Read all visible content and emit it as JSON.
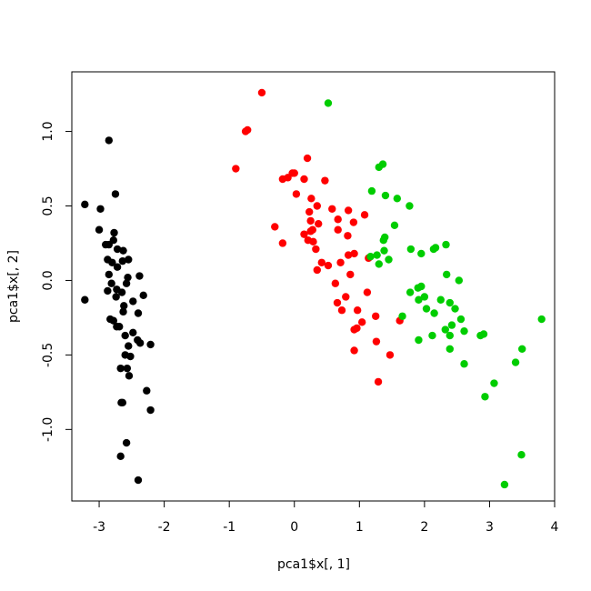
{
  "chart_data": {
    "type": "scatter",
    "title": "",
    "xlabel": "pca1$x[, 1]",
    "ylabel": "pca1$x[, 2]",
    "xlim": [
      -3.42,
      4.0
    ],
    "ylim": [
      -1.48,
      1.4
    ],
    "xticks": [
      -3,
      -2,
      -1,
      0,
      1,
      2,
      3,
      4
    ],
    "xtick_labels": [
      "-3",
      "-2",
      "-1",
      "0",
      "1",
      "2",
      "3",
      "4"
    ],
    "yticks": [
      -1.0,
      -0.5,
      0.0,
      0.5,
      1.0
    ],
    "ytick_labels": [
      "-1.0",
      "-0.5",
      "0.0",
      "0.5",
      "1.0"
    ],
    "grid": false,
    "legend": "none",
    "series": [
      {
        "color": "#000000",
        "points": [
          [
            -2.85,
            0.94
          ],
          [
            -2.75,
            0.58
          ],
          [
            -3.22,
            0.51
          ],
          [
            -2.98,
            0.48
          ],
          [
            -3.0,
            0.34
          ],
          [
            -2.77,
            0.32
          ],
          [
            -2.78,
            0.27
          ],
          [
            -2.9,
            0.24
          ],
          [
            -2.85,
            0.24
          ],
          [
            -2.72,
            0.21
          ],
          [
            -2.63,
            0.2
          ],
          [
            -2.55,
            0.14
          ],
          [
            -2.87,
            0.14
          ],
          [
            -2.64,
            0.13
          ],
          [
            -2.8,
            0.12
          ],
          [
            -2.72,
            0.09
          ],
          [
            -2.85,
            0.04
          ],
          [
            -2.56,
            0.02
          ],
          [
            -2.38,
            0.03
          ],
          [
            -2.81,
            -0.02
          ],
          [
            -2.58,
            -0.02
          ],
          [
            -2.73,
            -0.06
          ],
          [
            -2.65,
            -0.08
          ],
          [
            -2.87,
            -0.07
          ],
          [
            -2.32,
            -0.1
          ],
          [
            -2.74,
            -0.11
          ],
          [
            -2.48,
            -0.14
          ],
          [
            -3.22,
            -0.13
          ],
          [
            -2.62,
            -0.17
          ],
          [
            -2.63,
            -0.21
          ],
          [
            -2.4,
            -0.22
          ],
          [
            -2.83,
            -0.26
          ],
          [
            -2.78,
            -0.27
          ],
          [
            -2.73,
            -0.31
          ],
          [
            -2.69,
            -0.31
          ],
          [
            -2.48,
            -0.35
          ],
          [
            -2.6,
            -0.37
          ],
          [
            -2.41,
            -0.4
          ],
          [
            -2.37,
            -0.42
          ],
          [
            -2.21,
            -0.43
          ],
          [
            -2.55,
            -0.44
          ],
          [
            -2.6,
            -0.5
          ],
          [
            -2.52,
            -0.51
          ],
          [
            -2.67,
            -0.59
          ],
          [
            -2.57,
            -0.59
          ],
          [
            -2.54,
            -0.64
          ],
          [
            -2.27,
            -0.74
          ],
          [
            -2.64,
            -0.82
          ],
          [
            -2.66,
            -0.82
          ],
          [
            -2.21,
            -0.87
          ],
          [
            -2.58,
            -1.09
          ],
          [
            -2.67,
            -1.18
          ],
          [
            -2.4,
            -1.34
          ]
        ]
      },
      {
        "color": "#ff0000",
        "points": [
          [
            -0.5,
            1.26
          ],
          [
            -0.72,
            1.01
          ],
          [
            -0.75,
            1.0
          ],
          [
            0.2,
            0.82
          ],
          [
            -0.9,
            0.75
          ],
          [
            -0.03,
            0.72
          ],
          [
            0.0,
            0.72
          ],
          [
            -0.1,
            0.69
          ],
          [
            -0.18,
            0.68
          ],
          [
            0.15,
            0.68
          ],
          [
            0.47,
            0.67
          ],
          [
            0.03,
            0.58
          ],
          [
            0.26,
            0.55
          ],
          [
            0.35,
            0.5
          ],
          [
            0.23,
            0.46
          ],
          [
            0.58,
            0.48
          ],
          [
            0.83,
            0.47
          ],
          [
            1.08,
            0.44
          ],
          [
            0.67,
            0.41
          ],
          [
            0.25,
            0.4
          ],
          [
            0.91,
            0.39
          ],
          [
            0.37,
            0.38
          ],
          [
            -0.3,
            0.36
          ],
          [
            0.28,
            0.34
          ],
          [
            0.67,
            0.34
          ],
          [
            0.25,
            0.33
          ],
          [
            0.15,
            0.31
          ],
          [
            0.82,
            0.3
          ],
          [
            0.21,
            0.27
          ],
          [
            0.29,
            0.26
          ],
          [
            -0.18,
            0.25
          ],
          [
            0.33,
            0.21
          ],
          [
            0.42,
            0.12
          ],
          [
            0.83,
            0.17
          ],
          [
            0.92,
            0.18
          ],
          [
            1.14,
            0.15
          ],
          [
            0.71,
            0.12
          ],
          [
            0.52,
            0.1
          ],
          [
            0.35,
            0.07
          ],
          [
            0.86,
            0.04
          ],
          [
            0.63,
            -0.02
          ],
          [
            1.12,
            -0.08
          ],
          [
            0.79,
            -0.11
          ],
          [
            0.66,
            -0.15
          ],
          [
            0.97,
            -0.2
          ],
          [
            0.73,
            -0.2
          ],
          [
            1.25,
            -0.24
          ],
          [
            1.04,
            -0.28
          ],
          [
            1.62,
            -0.27
          ],
          [
            0.92,
            -0.33
          ],
          [
            0.96,
            -0.32
          ],
          [
            1.26,
            -0.41
          ],
          [
            0.92,
            -0.47
          ],
          [
            1.47,
            -0.5
          ],
          [
            1.29,
            -0.68
          ]
        ]
      },
      {
        "color": "#00cd00",
        "points": [
          [
            0.52,
            1.19
          ],
          [
            1.36,
            0.78
          ],
          [
            1.3,
            0.76
          ],
          [
            1.19,
            0.6
          ],
          [
            1.4,
            0.57
          ],
          [
            1.58,
            0.55
          ],
          [
            1.77,
            0.5
          ],
          [
            1.54,
            0.37
          ],
          [
            1.39,
            0.29
          ],
          [
            1.37,
            0.27
          ],
          [
            2.33,
            0.24
          ],
          [
            2.17,
            0.22
          ],
          [
            2.14,
            0.21
          ],
          [
            1.79,
            0.21
          ],
          [
            1.95,
            0.18
          ],
          [
            1.38,
            0.2
          ],
          [
            1.27,
            0.17
          ],
          [
            1.17,
            0.16
          ],
          [
            1.45,
            0.14
          ],
          [
            1.3,
            0.11
          ],
          [
            2.34,
            0.04
          ],
          [
            2.53,
            0.0
          ],
          [
            1.95,
            -0.04
          ],
          [
            1.9,
            -0.05
          ],
          [
            1.78,
            -0.08
          ],
          [
            2.0,
            -0.11
          ],
          [
            1.91,
            -0.13
          ],
          [
            2.25,
            -0.13
          ],
          [
            2.39,
            -0.15
          ],
          [
            2.47,
            -0.19
          ],
          [
            2.03,
            -0.19
          ],
          [
            2.15,
            -0.22
          ],
          [
            1.66,
            -0.24
          ],
          [
            2.56,
            -0.26
          ],
          [
            2.42,
            -0.3
          ],
          [
            2.32,
            -0.33
          ],
          [
            2.61,
            -0.34
          ],
          [
            2.86,
            -0.37
          ],
          [
            2.91,
            -0.36
          ],
          [
            2.12,
            -0.37
          ],
          [
            2.39,
            -0.37
          ],
          [
            3.8,
            -0.26
          ],
          [
            1.91,
            -0.4
          ],
          [
            3.5,
            -0.46
          ],
          [
            2.39,
            -0.46
          ],
          [
            2.61,
            -0.56
          ],
          [
            3.4,
            -0.55
          ],
          [
            3.07,
            -0.69
          ],
          [
            2.93,
            -0.78
          ],
          [
            3.49,
            -1.17
          ],
          [
            3.23,
            -1.37
          ]
        ]
      }
    ]
  }
}
